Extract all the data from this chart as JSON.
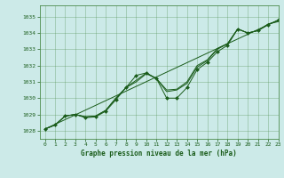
{
  "title": "Graphe pression niveau de la mer (hPa)",
  "bg_color": "#cceae8",
  "grid_color": "#4d8c4d",
  "line_color": "#1a5c1a",
  "xlim": [
    -0.5,
    23
  ],
  "ylim": [
    1027.5,
    1035.7
  ],
  "yticks": [
    1028,
    1029,
    1030,
    1031,
    1032,
    1033,
    1034,
    1035
  ],
  "xticks": [
    0,
    1,
    2,
    3,
    4,
    5,
    6,
    7,
    8,
    9,
    10,
    11,
    12,
    13,
    14,
    15,
    16,
    17,
    18,
    19,
    20,
    21,
    22,
    23
  ],
  "series_wavy": [
    1028.1,
    1028.35,
    1028.9,
    1029.0,
    1028.8,
    1028.85,
    1029.2,
    1029.9,
    1030.65,
    1031.4,
    1031.55,
    1031.2,
    1030.0,
    1030.0,
    1030.65,
    1031.75,
    1032.2,
    1032.85,
    1033.25,
    1034.25,
    1034.0,
    1034.15,
    1034.5,
    1034.8
  ],
  "series_straight": [
    [
      0,
      1028.1
    ],
    [
      23,
      1034.8
    ]
  ],
  "series_mid1": [
    1028.1,
    1028.35,
    1028.9,
    1029.0,
    1028.85,
    1028.9,
    1029.25,
    1030.0,
    1030.65,
    1031.1,
    1031.55,
    1031.2,
    1030.4,
    1030.5,
    1030.9,
    1031.9,
    1032.3,
    1033.0,
    1033.35,
    1034.25,
    1034.0,
    1034.15,
    1034.55,
    1034.75
  ],
  "series_mid2": [
    1028.1,
    1028.35,
    1028.9,
    1029.0,
    1028.85,
    1028.9,
    1029.25,
    1030.0,
    1030.65,
    1031.0,
    1031.5,
    1031.2,
    1030.5,
    1030.55,
    1031.0,
    1032.0,
    1032.35,
    1033.05,
    1033.35,
    1034.25,
    1034.0,
    1034.15,
    1034.55,
    1034.7
  ]
}
